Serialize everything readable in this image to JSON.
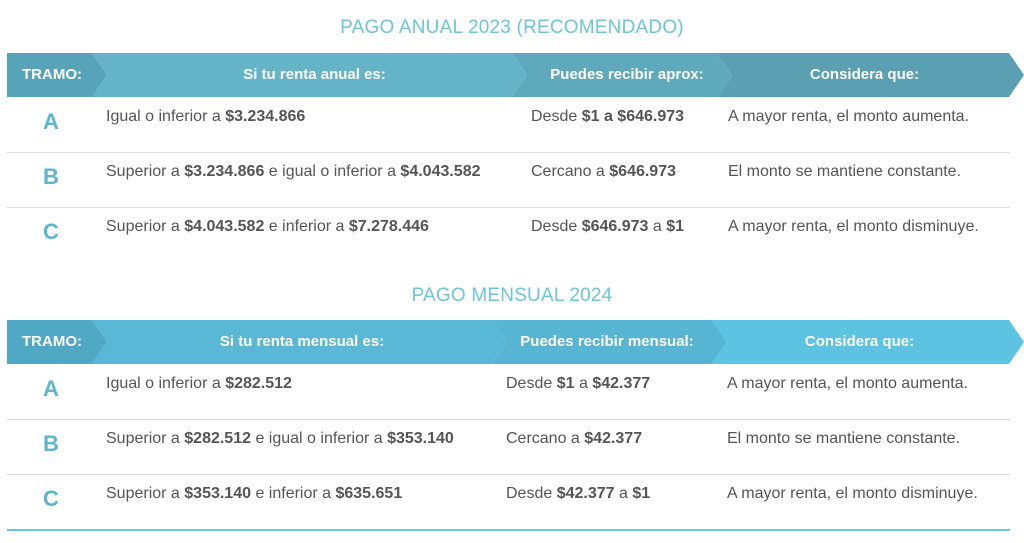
{
  "tables": [
    {
      "title": "PAGO ANUAL 2023 (RECOMENDADO)",
      "headers": [
        "TRAMO:",
        "Si tu renta anual es:",
        "Puedes recibir aprox:",
        "Considera que:"
      ],
      "rows": [
        {
          "tramo": "A",
          "renta": {
            "t1": "Igual o inferior a ",
            "b1": "$3.234.866",
            "t2": "",
            "b2": ""
          },
          "recibir": {
            "t1": "Desde ",
            "b1": "$1 a $646.973",
            "t2": "",
            "b2": ""
          },
          "considera": "A mayor renta, el monto aumenta."
        },
        {
          "tramo": "B",
          "renta": {
            "t1": "Superior a ",
            "b1": "$3.234.866",
            "t2": " e igual o inferior a ",
            "b2": "$4.043.582"
          },
          "recibir": {
            "t1": "Cercano a ",
            "b1": "$646.973",
            "t2": "",
            "b2": ""
          },
          "considera": "El monto se mantiene constante."
        },
        {
          "tramo": "C",
          "renta": {
            "t1": "Superior a ",
            "b1": "$4.043.582",
            "t2": " e inferior a ",
            "b2": "$7.278.446"
          },
          "recibir": {
            "t1": "Desde ",
            "b1": "$646.973",
            "t2": " a ",
            "b2": "$1"
          },
          "considera": "A mayor renta, el monto disminuye."
        }
      ]
    },
    {
      "title": "PAGO MENSUAL 2024",
      "headers": [
        "TRAMO:",
        "Si tu renta mensual es:",
        "Puedes recibir mensual:",
        "Considera que:"
      ],
      "rows": [
        {
          "tramo": "A",
          "renta": {
            "t1": "Igual o inferior a ",
            "b1": "$282.512",
            "t2": "",
            "b2": ""
          },
          "recibir": {
            "t1": "Desde ",
            "b1": "$1",
            "t2": " a ",
            "b2": "$42.377"
          },
          "considera": "A mayor renta, el monto aumenta."
        },
        {
          "tramo": "B",
          "renta": {
            "t1": "Superior a ",
            "b1": "$282.512",
            "t2": " e igual o inferior a ",
            "b2": "$353.140"
          },
          "recibir": {
            "t1": "Cercano a ",
            "b1": "$42.377",
            "t2": "",
            "b2": ""
          },
          "considera": "El monto se mantiene constante."
        },
        {
          "tramo": "C",
          "renta": {
            "t1": "Superior a ",
            "b1": "$353.140",
            "t2": " e inferior a ",
            "b2": "$635.651"
          },
          "recibir": {
            "t1": "Desde ",
            "b1": "$42.377",
            "t2": " a ",
            "b2": "$1"
          },
          "considera": "A mayor renta, el monto disminuye."
        }
      ]
    }
  ],
  "colors": {
    "title": "#6cc5dc",
    "tramo_letter": "#5cb6d0",
    "anual_header": [
      "#57a4b9",
      "#65b3c6",
      "#5fa9bd",
      "#5b9fb3"
    ],
    "mensual_header": [
      "#4fa9c4",
      "#59b8d6",
      "#56b5d3",
      "#5cc3e2"
    ]
  }
}
